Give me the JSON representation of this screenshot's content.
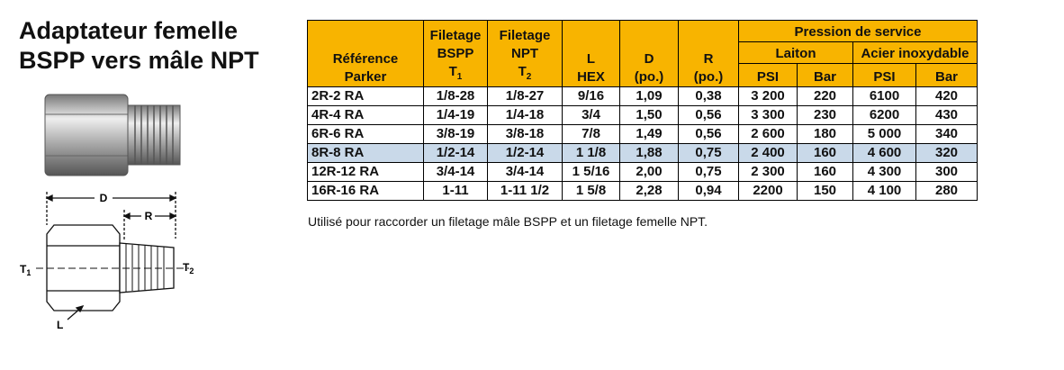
{
  "title": {
    "lines": [
      "Adaptateur femelle",
      "BSPP vers mâle NPT"
    ]
  },
  "diagram": {
    "D": "D",
    "R": "R",
    "T1": {
      "text": "T",
      "sub": "1"
    },
    "T2": {
      "text": "T",
      "sub": "2"
    },
    "L": "L"
  },
  "table": {
    "columns": [
      {
        "lines": [
          "Référence",
          "Parker"
        ]
      },
      {
        "lines": [
          "Filetage",
          "BSPP"
        ],
        "symbol": {
          "text": "T",
          "sub": "1"
        }
      },
      {
        "lines": [
          "Filetage",
          "NPT"
        ],
        "symbol": {
          "text": "T",
          "sub": "2"
        }
      },
      {
        "lines": [
          "L",
          "HEX"
        ]
      },
      {
        "lines": [
          "D",
          "(po.)"
        ]
      },
      {
        "lines": [
          "R",
          "(po.)"
        ]
      }
    ],
    "group": "Pression de service",
    "subgroups": [
      "Laiton",
      "Acier inoxydable"
    ],
    "units": [
      "PSI",
      "Bar",
      "PSI",
      "Bar"
    ],
    "rows": [
      [
        "2R-2 RA",
        "1/8-28",
        "1/8-27",
        "9/16",
        "1,09",
        "0,38",
        "3 200",
        "220",
        "6100",
        "420"
      ],
      [
        "4R-4 RA",
        "1/4-19",
        "1/4-18",
        "3/4",
        "1,50",
        "0,56",
        "3 300",
        "230",
        "6200",
        "430"
      ],
      [
        "6R-6 RA",
        "3/8-19",
        "3/8-18",
        "7/8",
        "1,49",
        "0,56",
        "2 600",
        "180",
        "5 000",
        "340"
      ],
      [
        "8R-8 RA",
        "1/2-14",
        "1/2-14",
        "1 1/8",
        "1,88",
        "0,75",
        "2 400",
        "160",
        "4 600",
        "320"
      ],
      [
        "12R-12 RA",
        "3/4-14",
        "3/4-14",
        "1 5/16",
        "2,00",
        "0,75",
        "2 300",
        "160",
        "4 300",
        "300"
      ],
      [
        "16R-16 RA",
        "1-11",
        "1-11 1/2",
        "1 5/8",
        "2,28",
        "0,94",
        "2200",
        "150",
        "4 100",
        "280"
      ]
    ],
    "highlighted_row": 3
  },
  "note": "Utilisé pour raccorder un filetage mâle BSPP et un filetage femelle NPT."
}
